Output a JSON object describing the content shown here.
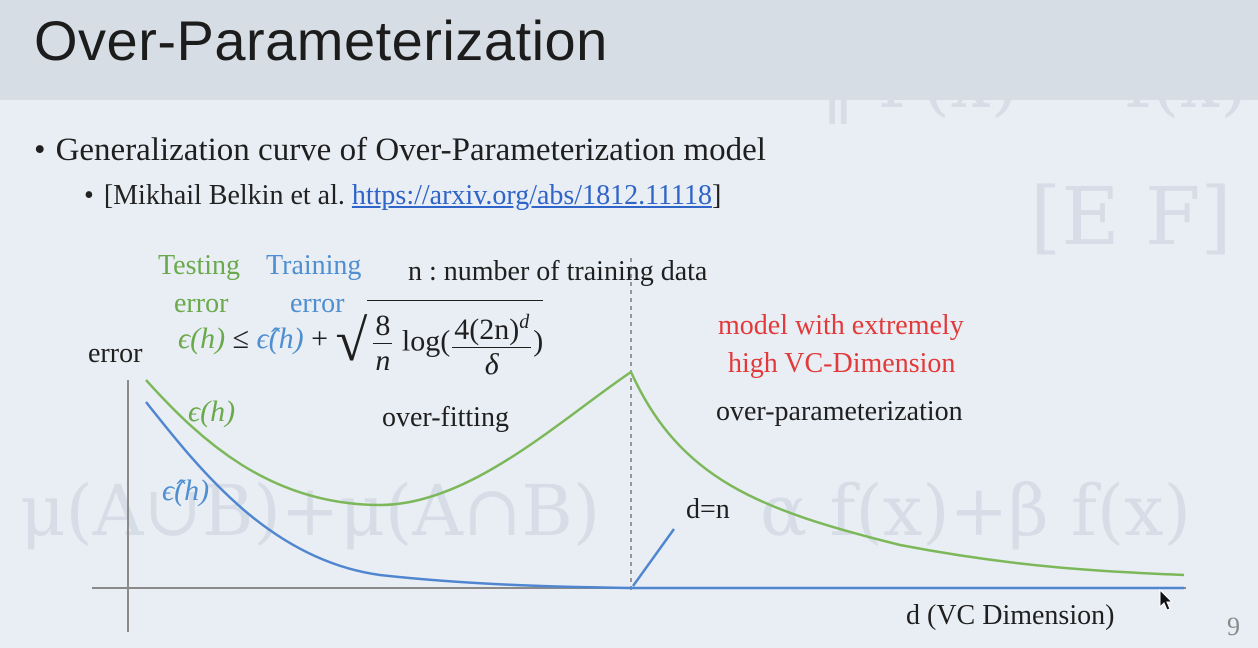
{
  "title": "Over-Parameterization",
  "bullets": {
    "main": "Generalization curve of Over-Parameterization model",
    "sub_prefix": "[Mikhail Belkin et al. ",
    "sub_link": "https://arxiv.org/abs/1812.11118",
    "sub_suffix": "]"
  },
  "diagram": {
    "testing_error_label_1": "Testing",
    "testing_error_label_2": "error",
    "training_error_label_1": "Training",
    "training_error_label_2": "error",
    "n_definition": "n : number of training data",
    "y_axis_label": "error",
    "x_axis_label": "d (VC Dimension)",
    "formula": {
      "lhs": "ϵ(h)",
      "leq": "≤",
      "rhs_hat": "ϵ̂(h)",
      "plus": "+",
      "frac1_num": "8",
      "frac1_den": "n",
      "log": "log(",
      "frac2_num": "4(2n)",
      "frac2_sup": "d",
      "frac2_den": "δ",
      "close": ")"
    },
    "curve_label_test": "ϵ(h)",
    "curve_label_train": "ϵ̂(h)",
    "over_fitting": "over-fitting",
    "model_red_1": "model with extremely",
    "model_red_2": "high VC-Dimension",
    "over_parameterization": "over-parameterization",
    "d_equals_n": "d=n"
  },
  "page_number": "9",
  "colors": {
    "testing": "#7cb85a",
    "training": "#4f86cf",
    "highlight": "#e23a3a",
    "link": "#2f64c8"
  }
}
